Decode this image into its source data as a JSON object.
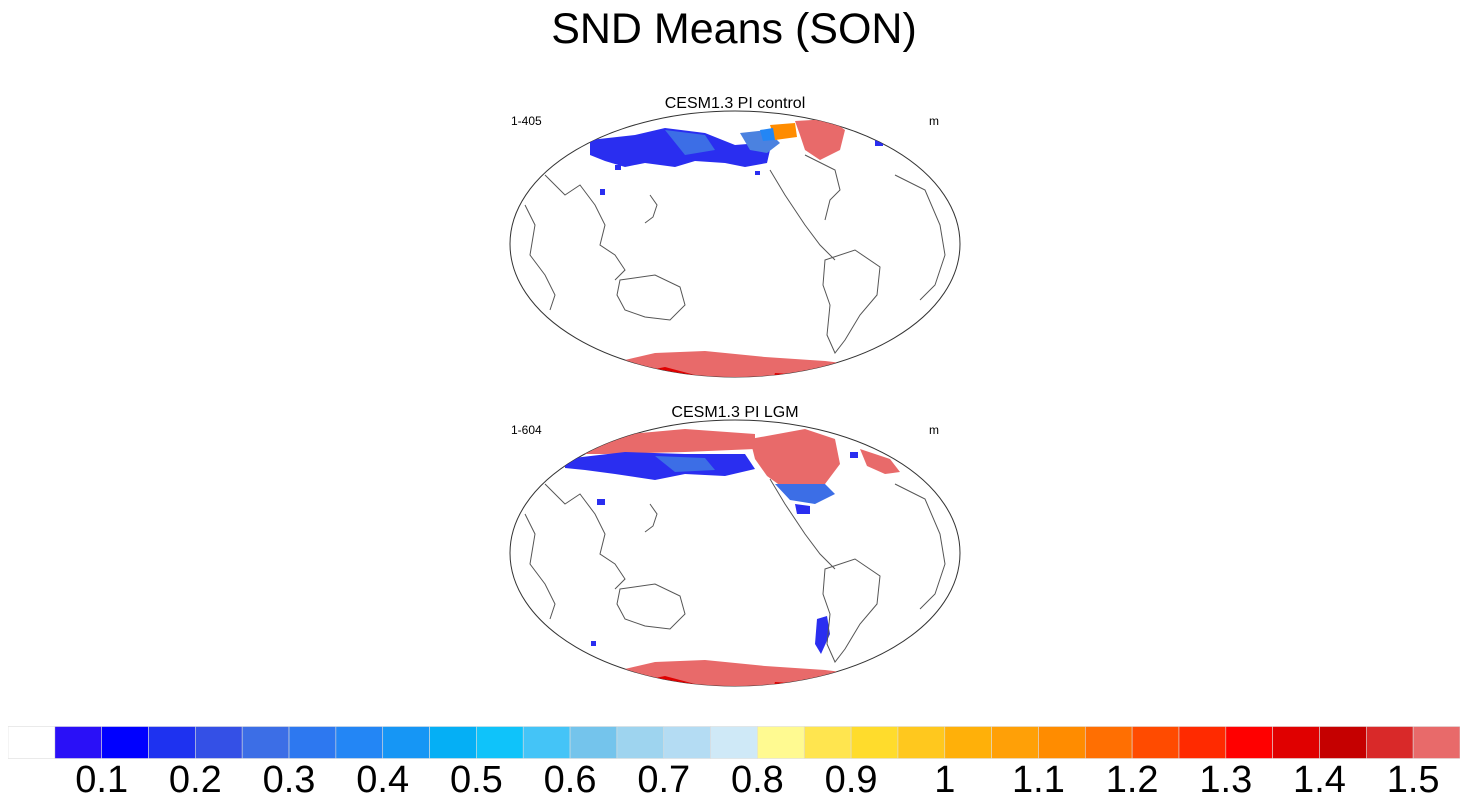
{
  "title": "SND Means (SON)",
  "panels": [
    {
      "title": "CESM1.3 PI control",
      "left_label": "1-405",
      "right_label": "m"
    },
    {
      "title": "CESM1.3 PI LGM",
      "left_label": "1-604",
      "right_label": "m"
    }
  ],
  "colorbar": {
    "colors": [
      "#ffffff",
      "#2a10f7",
      "#0000ff",
      "#1e32f0",
      "#3450e6",
      "#3c6ee6",
      "#2d78f0",
      "#2386f5",
      "#1696f5",
      "#05aff5",
      "#0fc3fa",
      "#44c4f7",
      "#74c4ec",
      "#9ed4ef",
      "#b4dcf3",
      "#cfe9f7",
      "#fffa91",
      "#ffe54f",
      "#ffdc2c",
      "#ffc81e",
      "#ffb009",
      "#ffa007",
      "#ff8c00",
      "#ff6f02",
      "#ff4b00",
      "#ff2a00",
      "#ff0000",
      "#e00000",
      "#c50000",
      "#d92929",
      "#e86a6a"
    ],
    "tick_labels": [
      "0.1",
      "0.2",
      "0.3",
      "0.4",
      "0.5",
      "0.6",
      "0.7",
      "0.8",
      "0.9",
      "1",
      "1.1",
      "1.2",
      "1.3",
      "1.4",
      "1.5"
    ]
  }
}
